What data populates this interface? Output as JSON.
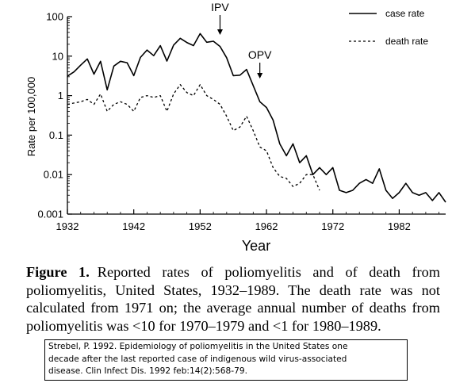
{
  "chart_data": {
    "type": "line",
    "xlabel": "Year",
    "ylabel": "Rate per 100,000",
    "y_scale": "log",
    "xlim": [
      1932,
      1989
    ],
    "ylim": [
      0.001,
      100
    ],
    "x_ticks": [
      "1932",
      "1942",
      "1952",
      "1962",
      "1972",
      "1982"
    ],
    "y_ticks": [
      "0.001",
      "0.01",
      "0.1",
      "1",
      "10",
      "100"
    ],
    "legend_position": "top-right",
    "series": [
      {
        "name": "case rate",
        "style": "solid",
        "x": [
          1932,
          1933,
          1934,
          1935,
          1936,
          1937,
          1938,
          1939,
          1940,
          1941,
          1942,
          1943,
          1944,
          1945,
          1946,
          1947,
          1948,
          1949,
          1950,
          1951,
          1952,
          1953,
          1954,
          1955,
          1956,
          1957,
          1958,
          1959,
          1960,
          1961,
          1962,
          1963,
          1964,
          1965,
          1966,
          1967,
          1968,
          1969,
          1970,
          1971,
          1972,
          1973,
          1974,
          1975,
          1976,
          1977,
          1978,
          1979,
          1980,
          1981,
          1982,
          1983,
          1984,
          1985,
          1986,
          1987,
          1988,
          1989
        ],
        "y": [
          3.1,
          4.0,
          5.9,
          8.5,
          3.5,
          7.4,
          1.4,
          5.6,
          7.4,
          6.8,
          3.2,
          9.3,
          14.3,
          10.3,
          18.4,
          7.5,
          19.0,
          28.3,
          22.1,
          18.5,
          37.2,
          22.5,
          23.9,
          17.6,
          9.1,
          3.2,
          3.3,
          4.6,
          1.8,
          0.7,
          0.5,
          0.24,
          0.06,
          0.03,
          0.06,
          0.02,
          0.03,
          0.01,
          0.015,
          0.01,
          0.015,
          0.004,
          0.0035,
          0.004,
          0.006,
          0.0075,
          0.006,
          0.014,
          0.004,
          0.0025,
          0.0035,
          0.006,
          0.0035,
          0.003,
          0.0035,
          0.0022,
          0.0035,
          0.002
        ]
      },
      {
        "name": "death rate",
        "style": "dashed",
        "x": [
          1932,
          1933,
          1934,
          1935,
          1936,
          1937,
          1938,
          1939,
          1940,
          1941,
          1942,
          1943,
          1944,
          1945,
          1946,
          1947,
          1948,
          1949,
          1950,
          1951,
          1952,
          1953,
          1954,
          1955,
          1956,
          1957,
          1958,
          1959,
          1960,
          1961,
          1962,
          1963,
          1964,
          1965,
          1966,
          1967,
          1968,
          1969,
          1970
        ],
        "y": [
          0.6,
          0.65,
          0.7,
          0.8,
          0.6,
          1.1,
          0.4,
          0.6,
          0.7,
          0.6,
          0.4,
          0.9,
          1.0,
          0.9,
          1.0,
          0.4,
          1.1,
          1.9,
          1.2,
          1.0,
          1.9,
          1.0,
          0.8,
          0.6,
          0.3,
          0.13,
          0.16,
          0.3,
          0.13,
          0.05,
          0.04,
          0.015,
          0.009,
          0.008,
          0.005,
          0.006,
          0.01,
          0.01,
          0.004
        ]
      }
    ],
    "annotations": [
      {
        "text": "IPV",
        "x": 1955
      },
      {
        "text": "OPV",
        "x": 1961
      }
    ]
  },
  "caption": {
    "label": "Figure 1.",
    "text": "Reported rates of poliomyelitis and of death from poliomyelitis, United States, 1932–1989. The death rate was not calculated from 1971 on; the average annual number of deaths from poliomyelitis was <10 for 1970–1979 and <1 for 1980–1989."
  },
  "source": {
    "lines": [
      "Strebel, P. 1992. Epidemiology of poliomyelitis in the United States one",
      "decade after the last reported case of indigenous wild virus-associated",
      "disease. Clin Infect Dis. 1992 feb:14(2):568-79."
    ]
  }
}
